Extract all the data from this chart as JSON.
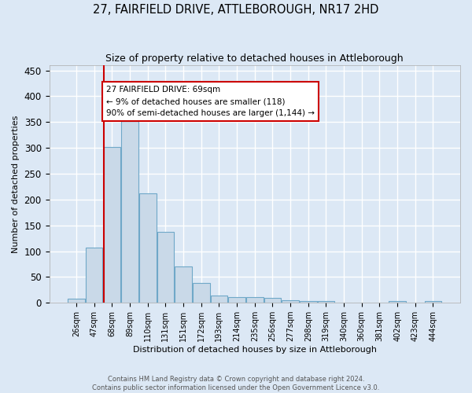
{
  "title": "27, FAIRFIELD DRIVE, ATTLEBOROUGH, NR17 2HD",
  "subtitle": "Size of property relative to detached houses in Attleborough",
  "xlabel": "Distribution of detached houses by size in Attleborough",
  "ylabel": "Number of detached properties",
  "bar_labels": [
    "26sqm",
    "47sqm",
    "68sqm",
    "89sqm",
    "110sqm",
    "131sqm",
    "151sqm",
    "172sqm",
    "193sqm",
    "214sqm",
    "235sqm",
    "256sqm",
    "277sqm",
    "298sqm",
    "319sqm",
    "340sqm",
    "360sqm",
    "381sqm",
    "402sqm",
    "423sqm",
    "444sqm"
  ],
  "bar_values": [
    8,
    107,
    302,
    360,
    212,
    137,
    70,
    38,
    14,
    11,
    11,
    10,
    5,
    3,
    3,
    0,
    0,
    0,
    4,
    0,
    3
  ],
  "bar_color": "#c9d9e8",
  "bar_edge_color": "#6fa8c8",
  "marker_bar_index": 2,
  "marker_color": "#cc0000",
  "annotation_text": "27 FAIRFIELD DRIVE: 69sqm\n← 9% of detached houses are smaller (118)\n90% of semi-detached houses are larger (1,144) →",
  "annotation_box_color": "#ffffff",
  "annotation_box_edge": "#cc0000",
  "ylim": [
    0,
    460
  ],
  "yticks": [
    0,
    50,
    100,
    150,
    200,
    250,
    300,
    350,
    400,
    450
  ],
  "background_color": "#dce8f5",
  "grid_color": "#ffffff",
  "footer_line1": "Contains HM Land Registry data © Crown copyright and database right 2024.",
  "footer_line2": "Contains public sector information licensed under the Open Government Licence v3.0."
}
